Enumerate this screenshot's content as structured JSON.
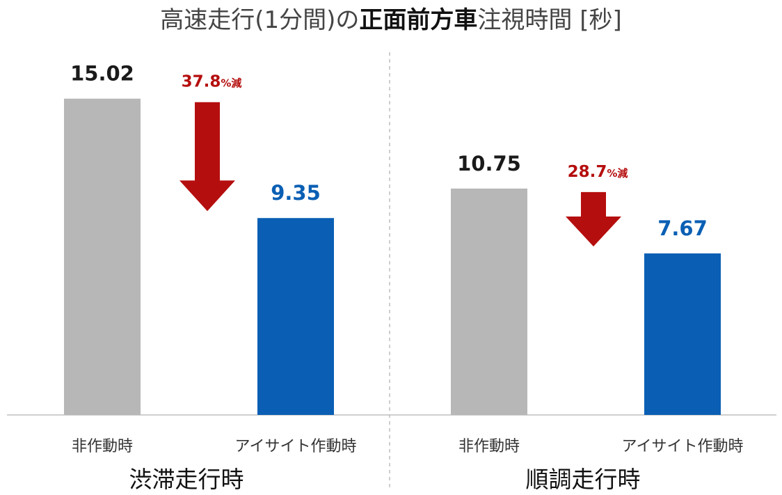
{
  "chart_data": {
    "type": "bar",
    "title_parts": [
      {
        "text": "高速走行(1分間)の",
        "bold": false
      },
      {
        "text": "正面前方車",
        "bold": true
      },
      {
        "text": "注視時間 [秒]",
        "bold": false
      }
    ],
    "groups": [
      {
        "name": "渋滞走行時",
        "categories": [
          "非作動時",
          "アイサイト作動時"
        ],
        "values": [
          15.02,
          9.35
        ],
        "value_labels": [
          "15.02",
          "9.35"
        ],
        "reduction_number": "37.8",
        "reduction_suffix": "%減"
      },
      {
        "name": "順調走行時",
        "categories": [
          "非作動時",
          "アイサイト作動時"
        ],
        "values": [
          10.75,
          7.67
        ],
        "value_labels": [
          "10.75",
          "7.67"
        ],
        "reduction_number": "28.7",
        "reduction_suffix": "%減"
      }
    ],
    "ylim": [
      0,
      17.06
    ],
    "grid": false,
    "colors": {
      "bar_off": "#b7b7b7",
      "bar_on": "#0a5fb4",
      "label_off": "#1a1a1a",
      "label_on": "#0a5fb4",
      "arrow": "#b50e0e",
      "axis": "#bfbfbf",
      "divider": "#bdbdbd",
      "title": "#444444",
      "category_text": "#333333",
      "group_text": "#111111"
    }
  }
}
